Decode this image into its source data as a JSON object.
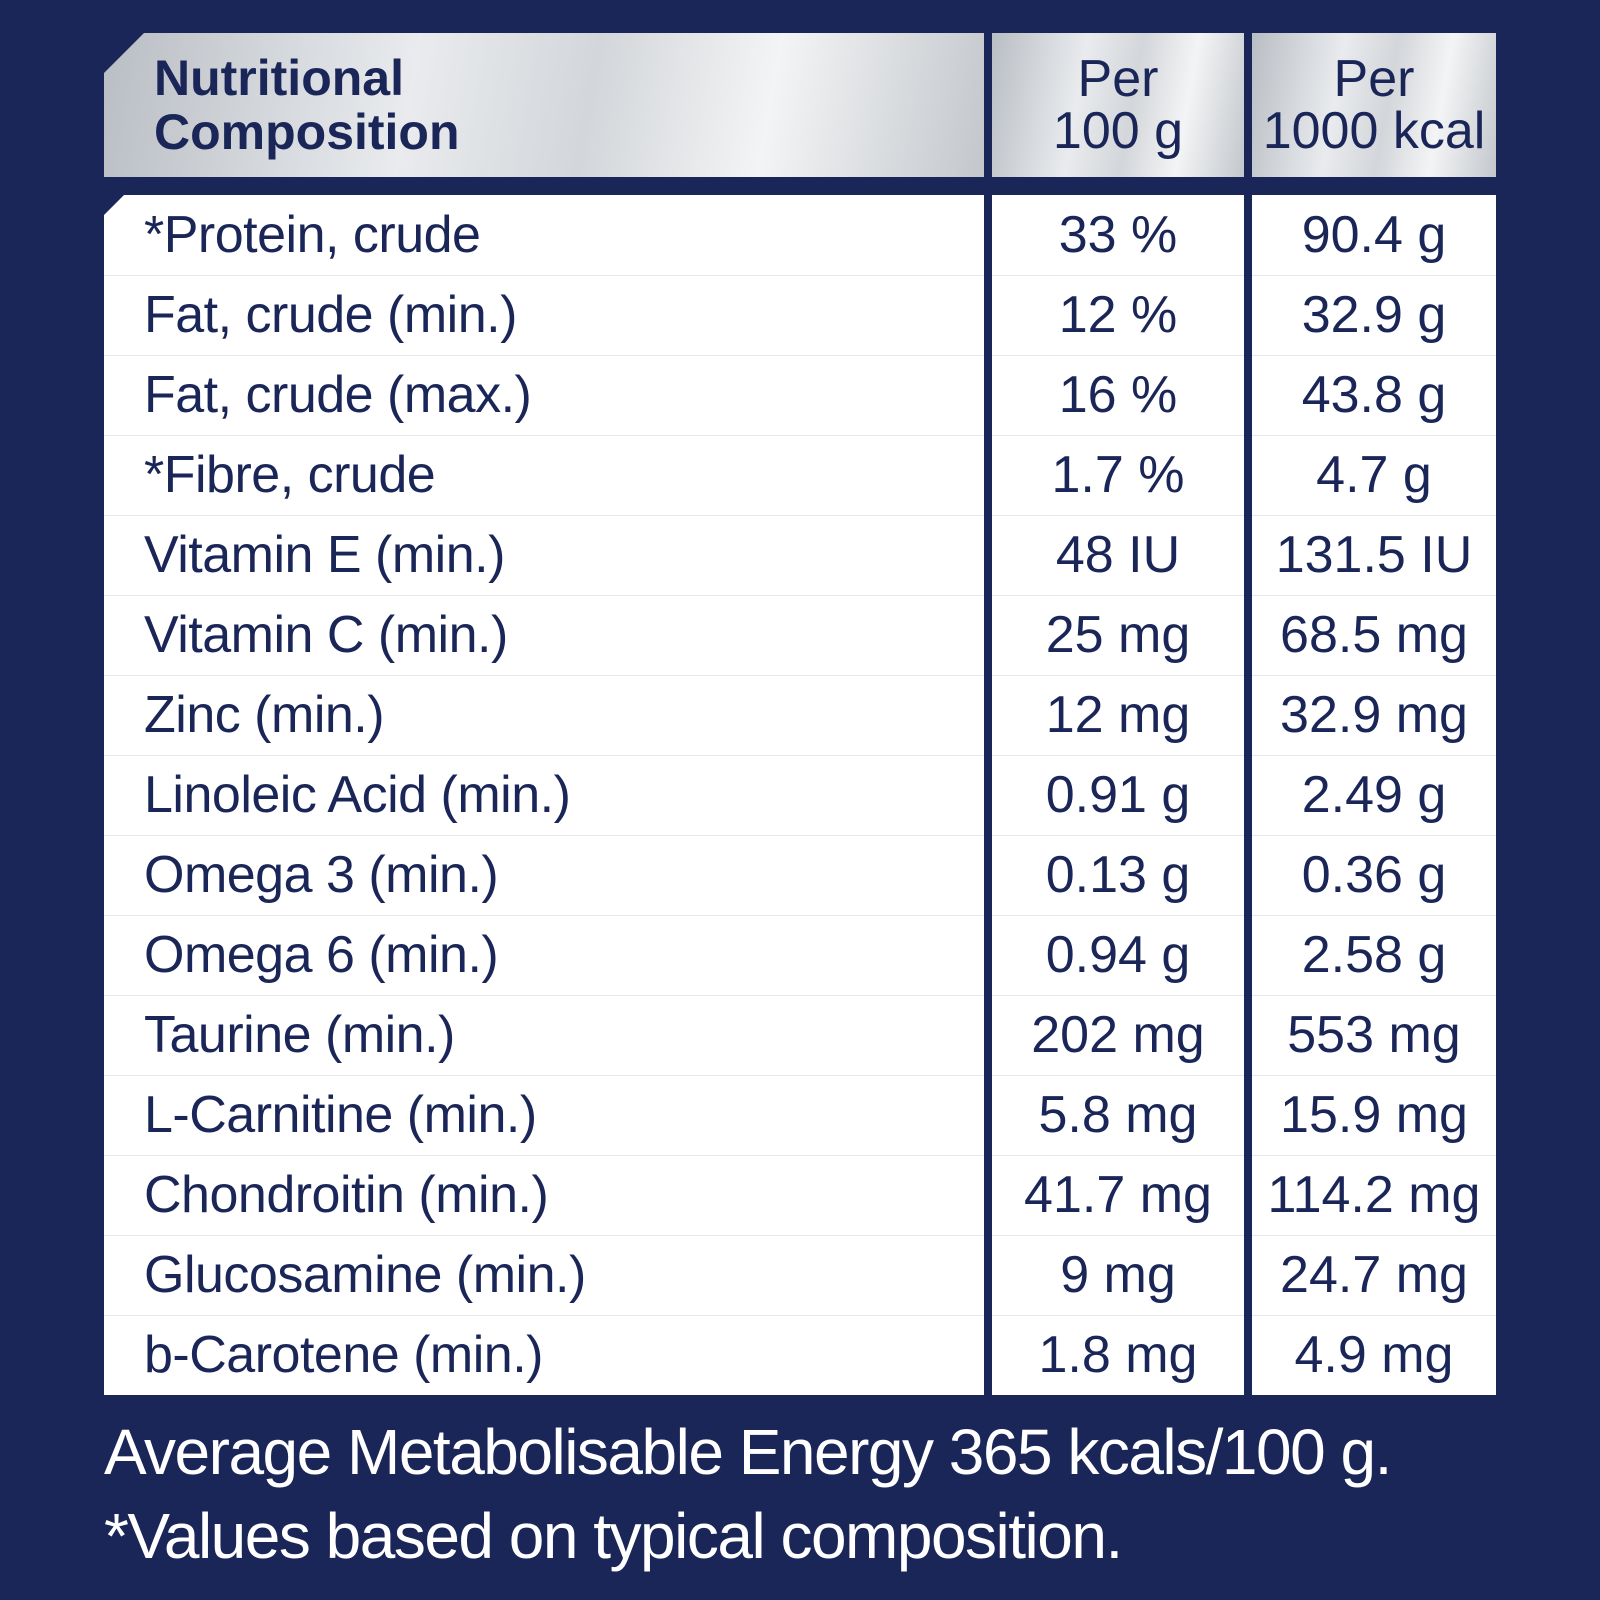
{
  "header": {
    "name_line1": "Nutritional",
    "name_line2": "Composition",
    "col1_line1": "Per",
    "col1_line2": "100 g",
    "col2_line1": "Per",
    "col2_line2": "1000 kcal"
  },
  "rows": [
    {
      "name": "*Protein, crude",
      "per100g": "33 %",
      "per1000kcal": "90.4 g"
    },
    {
      "name": "Fat, crude (min.)",
      "per100g": "12 %",
      "per1000kcal": "32.9 g"
    },
    {
      "name": "Fat, crude (max.)",
      "per100g": "16 %",
      "per1000kcal": "43.8 g"
    },
    {
      "name": "*Fibre, crude",
      "per100g": "1.7 %",
      "per1000kcal": "4.7 g"
    },
    {
      "name": "Vitamin E (min.)",
      "per100g": "48 IU",
      "per1000kcal": "131.5 IU"
    },
    {
      "name": "Vitamin C (min.)",
      "per100g": "25 mg",
      "per1000kcal": "68.5 mg"
    },
    {
      "name": "Zinc (min.)",
      "per100g": "12 mg",
      "per1000kcal": "32.9 mg"
    },
    {
      "name": "Linoleic Acid (min.)",
      "per100g": "0.91 g",
      "per1000kcal": "2.49 g"
    },
    {
      "name": "Omega 3 (min.)",
      "per100g": "0.13 g",
      "per1000kcal": "0.36 g"
    },
    {
      "name": "Omega 6 (min.)",
      "per100g": "0.94 g",
      "per1000kcal": "2.58 g"
    },
    {
      "name": "Taurine (min.)",
      "per100g": "202 mg",
      "per1000kcal": "553 mg"
    },
    {
      "name": "L-Carnitine (min.)",
      "per100g": "5.8 mg",
      "per1000kcal": "15.9 mg"
    },
    {
      "name": "Chondroitin (min.)",
      "per100g": "41.7 mg",
      "per1000kcal": "114.2 mg"
    },
    {
      "name": "Glucosamine (min.)",
      "per100g": "9 mg",
      "per1000kcal": "24.7 mg"
    },
    {
      "name": "b-Carotene (min.)",
      "per100g": "1.8 mg",
      "per1000kcal": "4.9 mg"
    }
  ],
  "footer": {
    "line1": "Average Metabolisable Energy 365 kcals/100 g.",
    "line2": "*Values based on typical composition."
  },
  "colors": {
    "background": "#1b2658",
    "text_dark": "#1b2658",
    "header_silver": "#d3d6da",
    "cell_white": "#ffffff"
  }
}
